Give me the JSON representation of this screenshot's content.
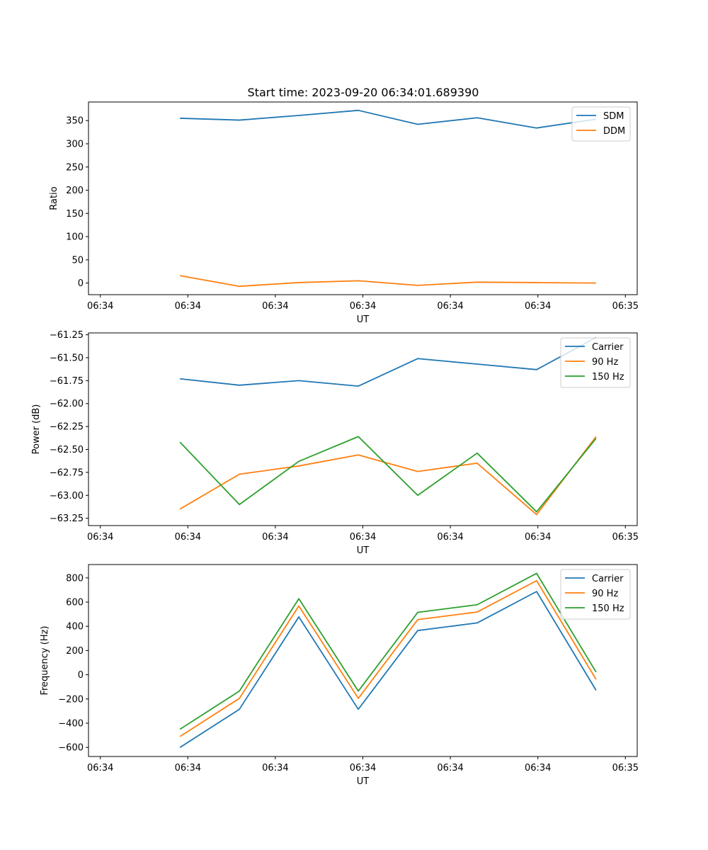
{
  "figure_title": "Start time: 2023-09-20 06:34:01.689390",
  "colors": {
    "blue": "#1f77b4",
    "orange": "#ff7f0e",
    "green": "#2ca02c"
  },
  "chart_data": [
    {
      "type": "line",
      "title": "Start time: 2023-09-20 06:34:01.689390",
      "xlabel": "UT",
      "ylabel": "Ratio",
      "x_tick_labels": [
        "06:34",
        "06:34",
        "06:34",
        "06:34",
        "06:34",
        "06:34",
        "06:35"
      ],
      "x_range": [
        -0.5,
        5.5
      ],
      "x": [
        0.5,
        1.15,
        1.8,
        2.45,
        3.1,
        3.75,
        4.4,
        5.05
      ],
      "y_ticks": [
        0,
        50,
        100,
        150,
        200,
        250,
        300,
        350
      ],
      "ylim": [
        -25,
        390
      ],
      "series": [
        {
          "name": "SDM",
          "color": "#1f77b4",
          "values": [
            355,
            351,
            361,
            372,
            342,
            356,
            334,
            353
          ]
        },
        {
          "name": "DDM",
          "color": "#ff7f0e",
          "values": [
            16,
            -7,
            1,
            5,
            -5,
            2,
            1,
            0
          ]
        }
      ],
      "legend": "top-right"
    },
    {
      "type": "line",
      "xlabel": "UT",
      "ylabel": "Power (dB)",
      "x_tick_labels": [
        "06:34",
        "06:34",
        "06:34",
        "06:34",
        "06:34",
        "06:34",
        "06:35"
      ],
      "x_range": [
        -0.5,
        5.5
      ],
      "x": [
        0.5,
        1.15,
        1.8,
        2.45,
        3.1,
        3.75,
        4.4,
        5.05
      ],
      "y_ticks": [
        -63.25,
        -63.0,
        -62.75,
        -62.5,
        -62.25,
        -62.0,
        -61.75,
        -61.5,
        -61.25
      ],
      "y_tick_labels": [
        "−63.25",
        "−63.00",
        "−62.75",
        "−62.50",
        "−62.25",
        "−62.00",
        "−61.75",
        "−61.50",
        "−61.25"
      ],
      "ylim": [
        -63.33,
        -61.23
      ],
      "series": [
        {
          "name": "Carrier",
          "color": "#1f77b4",
          "values": [
            -61.73,
            -61.8,
            -61.75,
            -61.81,
            -61.51,
            -61.57,
            -61.63,
            -61.28
          ]
        },
        {
          "name": "90 Hz",
          "color": "#ff7f0e",
          "values": [
            -63.15,
            -62.77,
            -62.68,
            -62.56,
            -62.74,
            -62.65,
            -63.21,
            -62.36
          ]
        },
        {
          "name": "150 Hz",
          "color": "#2ca02c",
          "values": [
            -62.42,
            -63.1,
            -62.63,
            -62.36,
            -63.0,
            -62.54,
            -63.18,
            -62.38
          ]
        }
      ],
      "legend": "top-right"
    },
    {
      "type": "line",
      "xlabel": "UT",
      "ylabel": "Frequency (Hz)",
      "x_tick_labels": [
        "06:34",
        "06:34",
        "06:34",
        "06:34",
        "06:34",
        "06:34",
        "06:35"
      ],
      "x_range": [
        -0.5,
        5.5
      ],
      "x": [
        0.5,
        1.15,
        1.8,
        2.45,
        3.1,
        3.75,
        4.4,
        5.05
      ],
      "y_ticks": [
        -600,
        -400,
        -200,
        0,
        200,
        400,
        600,
        800
      ],
      "y_tick_labels": [
        "−600",
        "−400",
        "−200",
        "0",
        "200",
        "400",
        "600",
        "800"
      ],
      "ylim": [
        -675,
        910
      ],
      "series": [
        {
          "name": "Carrier",
          "color": "#1f77b4",
          "values": [
            -600,
            -285,
            478,
            -285,
            365,
            428,
            687,
            -128
          ]
        },
        {
          "name": "90 Hz",
          "color": "#ff7f0e",
          "values": [
            -510,
            -195,
            568,
            -195,
            455,
            518,
            777,
            -38
          ]
        },
        {
          "name": "150 Hz",
          "color": "#2ca02c",
          "values": [
            -450,
            -135,
            628,
            -135,
            515,
            578,
            837,
            22
          ]
        }
      ],
      "legend": "top-right"
    }
  ]
}
